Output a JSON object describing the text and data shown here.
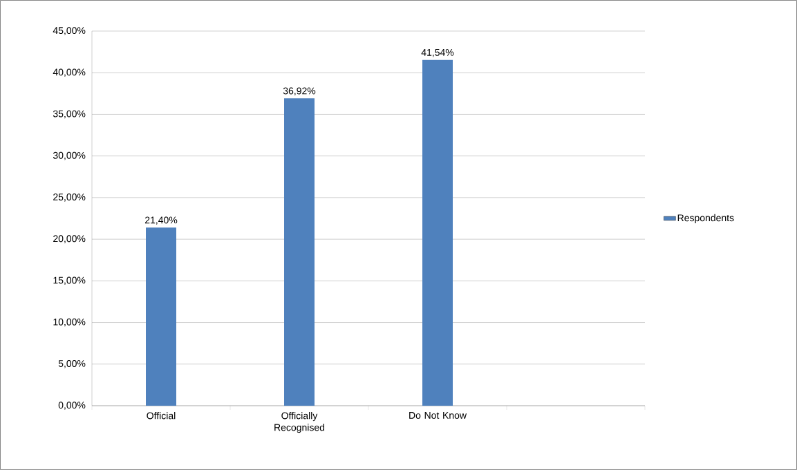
{
  "chart_data": {
    "type": "bar",
    "categories": [
      "Official",
      "Officially Recognised",
      "Do Not Know",
      null
    ],
    "series": [
      {
        "name": "Respondents",
        "color": "#4f81bd",
        "values": [
          21.4,
          36.92,
          41.54,
          null
        ],
        "value_labels": [
          "21,40%",
          "36,92%",
          "41,54%",
          null
        ]
      }
    ],
    "ylim": [
      0,
      45
    ],
    "yticks": [
      {
        "value": 0,
        "label": "0,00%"
      },
      {
        "value": 5,
        "label": "5,00%"
      },
      {
        "value": 10,
        "label": "10,00%"
      },
      {
        "value": 15,
        "label": "15,00%"
      },
      {
        "value": 20,
        "label": "20,00%"
      },
      {
        "value": 25,
        "label": "25,00%"
      },
      {
        "value": 30,
        "label": "30,00%"
      },
      {
        "value": 35,
        "label": "35,00%"
      },
      {
        "value": 40,
        "label": "40,00%"
      },
      {
        "value": 45,
        "label": "45,00%"
      }
    ],
    "grid": "y",
    "legend": "right"
  }
}
